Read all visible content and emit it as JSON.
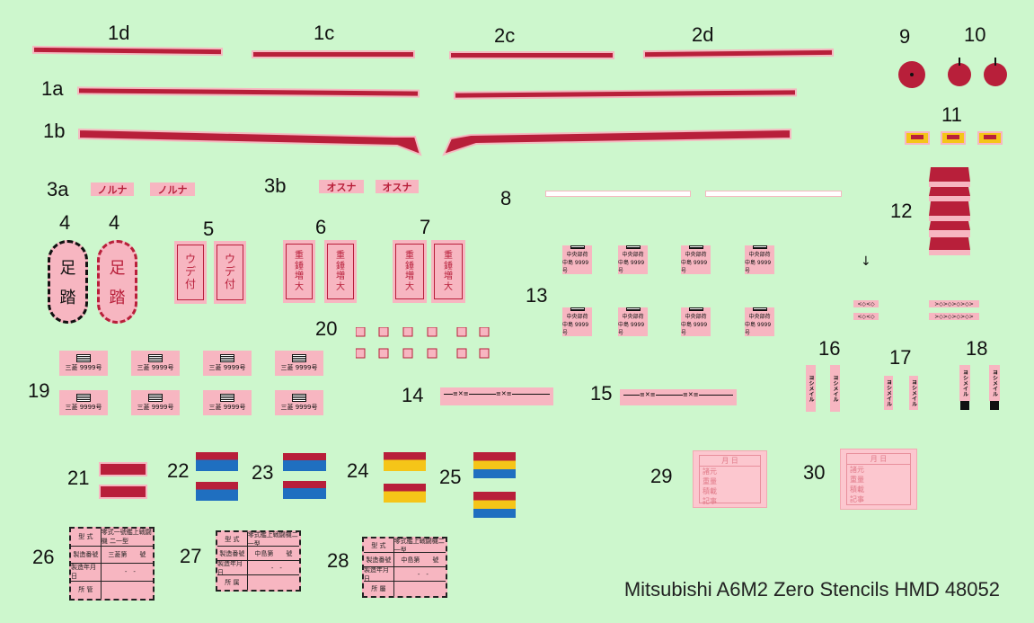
{
  "labels": {
    "l1d": "1d",
    "l1c": "1c",
    "l2c": "2c",
    "l2d": "2d",
    "l9": "9",
    "l10": "10",
    "l1a": "1a",
    "l1b": "1b",
    "l11": "11",
    "l3a": "3a",
    "l3b": "3b",
    "l8": "8",
    "l12": "12",
    "l4a": "4",
    "l4b": "4",
    "l5": "5",
    "l6": "6",
    "l7": "7",
    "l13": "13",
    "l20": "20",
    "l16": "16",
    "l17": "17",
    "l18": "18",
    "l19": "19",
    "l14": "14",
    "l15": "15",
    "l21": "21",
    "l22": "22",
    "l23": "23",
    "l24": "24",
    "l25": "25",
    "l29": "29",
    "l30": "30",
    "l26": "26",
    "l27": "27",
    "l28": "28"
  },
  "stencils": {
    "norna": "ノルナ",
    "osuna": "オスナ",
    "ashibumi_top": "足",
    "ashibumi_bottom": "踏",
    "udezuke": [
      "ウ",
      "デ",
      "付"
    ],
    "juryo": [
      "重",
      "錘",
      "増",
      "大"
    ],
    "panel_line1": "中央部荷",
    "panel_line2": "中島 9999号",
    "small19": "三菱 9999号",
    "s14a": "≡✕≡",
    "s14b": "≡✕≡",
    "s15a": "≡✕≡",
    "s15b": "≡✕≡",
    "arrow_strip_a": "<◇<◇",
    "arrow_strip_b": ">◇>◇>◇>◇>",
    "vert16": "ヨシメイル",
    "vert17": "ヨシメイル",
    "vert18": "ヨシメイル"
  },
  "tables": {
    "t26": [
      [
        "型 式",
        "零式一號艦上戦闘機 二一型"
      ],
      [
        "製造番號",
        "三菱第　　號"
      ],
      [
        "製造年月日",
        "　-　-"
      ],
      [
        "所 管",
        ""
      ]
    ],
    "t27": [
      [
        "型 式",
        "零式艦上戦闘機二一型"
      ],
      [
        "製造番號",
        "中島第　　號"
      ],
      [
        "製造年月日",
        "　-　-"
      ],
      [
        "所 属",
        ""
      ]
    ],
    "t28": [
      [
        "型 式",
        "零式艦上戦闘機二一型"
      ],
      [
        "製造番號",
        "中島第　　號"
      ],
      [
        "製造年月日",
        "　-　-"
      ],
      [
        "所 屬",
        ""
      ]
    ]
  },
  "ptable29": {
    "head": "月 日",
    "rows": [
      "諸元",
      "重量",
      "積載",
      "記事"
    ]
  },
  "ptable30": {
    "head": "月 日",
    "rows": [
      "諸元",
      "重量",
      "積載",
      "記事"
    ]
  },
  "title": "Mitsubishi A6M2 Zero Stencils HMD 48052",
  "colors": {
    "red": "#b81f3a",
    "pink": "#f7b6c1",
    "blue": "#1f6fc0",
    "yellow": "#f5c518",
    "background": "#cdf7cd"
  }
}
